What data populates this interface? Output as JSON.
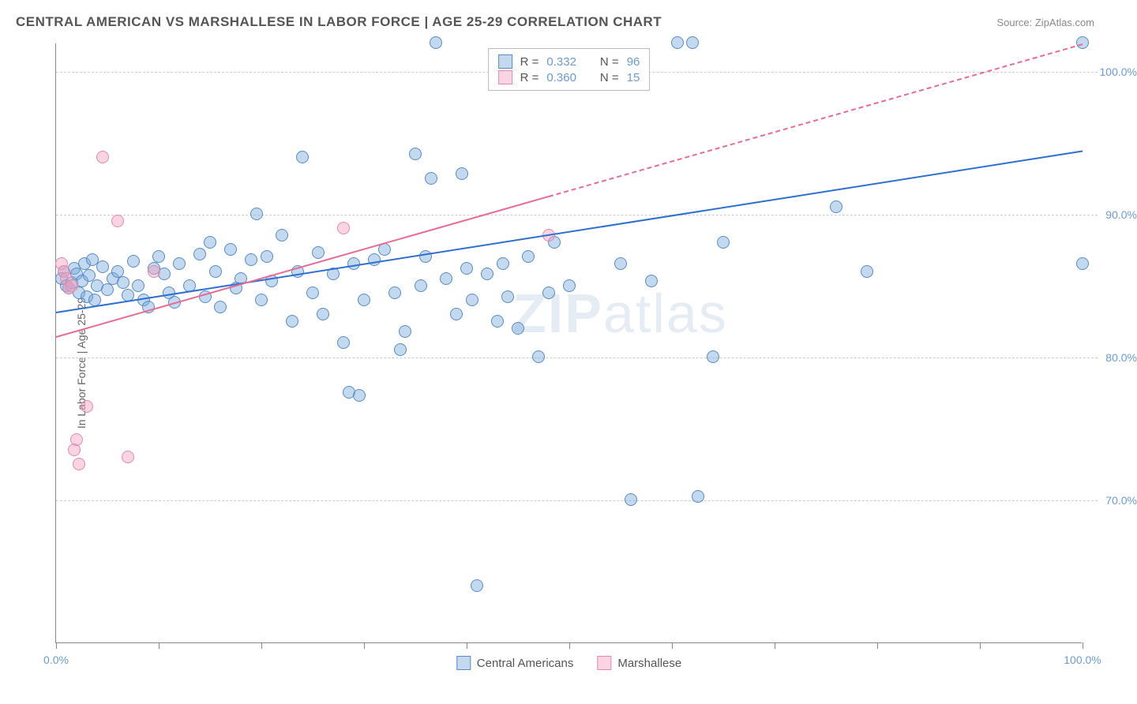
{
  "header": {
    "title": "CENTRAL AMERICAN VS MARSHALLESE IN LABOR FORCE | AGE 25-29 CORRELATION CHART",
    "source": "Source: ZipAtlas.com"
  },
  "chart": {
    "type": "scatter",
    "ylabel": "In Labor Force | Age 25-29",
    "xlim": [
      0,
      100
    ],
    "ylim": [
      60,
      102
    ],
    "xtick_positions": [
      0,
      10,
      20,
      30,
      40,
      50,
      60,
      70,
      80,
      90,
      100
    ],
    "xtick_labels_shown": {
      "0": "0.0%",
      "100": "100.0%"
    },
    "ytick_positions": [
      70,
      80,
      90,
      100
    ],
    "ytick_labels": {
      "70": "70.0%",
      "80": "80.0%",
      "90": "90.0%",
      "100": "100.0%"
    },
    "grid_color": "#cccccc",
    "axis_color": "#888888",
    "label_color": "#6b9bd1",
    "text_color": "#666666",
    "background_color": "#ffffff",
    "watermark": {
      "text_bold": "ZIP",
      "text_light": "atlas",
      "color": "rgba(150,180,210,0.25)"
    },
    "series": [
      {
        "name": "Central Americans",
        "marker_fill": "rgba(120,170,220,0.45)",
        "marker_stroke": "#5a8bc4",
        "trend_color": "#2e6fd0",
        "trend": {
          "x1": 0,
          "y1": 83.2,
          "x2": 100,
          "y2": 94.5,
          "solid_until_x": 100
        },
        "r": "0.332",
        "n": "96",
        "points": [
          [
            0.5,
            85.5
          ],
          [
            0.8,
            86.0
          ],
          [
            1.0,
            85.0
          ],
          [
            1.2,
            84.8
          ],
          [
            1.5,
            85.2
          ],
          [
            1.8,
            86.2
          ],
          [
            2.0,
            85.8
          ],
          [
            2.2,
            84.5
          ],
          [
            2.5,
            85.3
          ],
          [
            2.8,
            86.5
          ],
          [
            3.0,
            84.2
          ],
          [
            3.2,
            85.7
          ],
          [
            3.5,
            86.8
          ],
          [
            3.8,
            84.0
          ],
          [
            4.0,
            85.0
          ],
          [
            4.5,
            86.3
          ],
          [
            5.0,
            84.7
          ],
          [
            5.5,
            85.5
          ],
          [
            6.0,
            86.0
          ],
          [
            6.5,
            85.2
          ],
          [
            7.0,
            84.3
          ],
          [
            7.5,
            86.7
          ],
          [
            8.0,
            85.0
          ],
          [
            8.5,
            84.0
          ],
          [
            9.0,
            83.5
          ],
          [
            9.5,
            86.2
          ],
          [
            10,
            87.0
          ],
          [
            10.5,
            85.8
          ],
          [
            11,
            84.5
          ],
          [
            11.5,
            83.8
          ],
          [
            12,
            86.5
          ],
          [
            13,
            85.0
          ],
          [
            14,
            87.2
          ],
          [
            14.5,
            84.2
          ],
          [
            15,
            88.0
          ],
          [
            15.5,
            86.0
          ],
          [
            16,
            83.5
          ],
          [
            17,
            87.5
          ],
          [
            17.5,
            84.8
          ],
          [
            18,
            85.5
          ],
          [
            19,
            86.8
          ],
          [
            19.5,
            90.0
          ],
          [
            20,
            84.0
          ],
          [
            20.5,
            87.0
          ],
          [
            21,
            85.3
          ],
          [
            22,
            88.5
          ],
          [
            23,
            82.5
          ],
          [
            23.5,
            86.0
          ],
          [
            24,
            94.0
          ],
          [
            25,
            84.5
          ],
          [
            25.5,
            87.3
          ],
          [
            26,
            83.0
          ],
          [
            27,
            85.8
          ],
          [
            28,
            81.0
          ],
          [
            28.5,
            77.5
          ],
          [
            29,
            86.5
          ],
          [
            29.5,
            77.3
          ],
          [
            30,
            84.0
          ],
          [
            31,
            86.8
          ],
          [
            32,
            87.5
          ],
          [
            33,
            84.5
          ],
          [
            33.5,
            80.5
          ],
          [
            34,
            81.8
          ],
          [
            35,
            94.2
          ],
          [
            35.5,
            85.0
          ],
          [
            36,
            87.0
          ],
          [
            36.5,
            92.5
          ],
          [
            37,
            102.0
          ],
          [
            38,
            85.5
          ],
          [
            39,
            83.0
          ],
          [
            39.5,
            92.8
          ],
          [
            40,
            86.2
          ],
          [
            40.5,
            84.0
          ],
          [
            41,
            64.0
          ],
          [
            42,
            85.8
          ],
          [
            43,
            82.5
          ],
          [
            43.5,
            86.5
          ],
          [
            44,
            84.2
          ],
          [
            45,
            82.0
          ],
          [
            46,
            87.0
          ],
          [
            47,
            80.0
          ],
          [
            48,
            84.5
          ],
          [
            48.5,
            88.0
          ],
          [
            50,
            85.0
          ],
          [
            55,
            86.5
          ],
          [
            56,
            70.0
          ],
          [
            58,
            85.3
          ],
          [
            60.5,
            102.0
          ],
          [
            62,
            102.0
          ],
          [
            62.5,
            70.2
          ],
          [
            64,
            80.0
          ],
          [
            65,
            88.0
          ],
          [
            76,
            90.5
          ],
          [
            79,
            86.0
          ],
          [
            100,
            102.0
          ],
          [
            100,
            86.5
          ]
        ]
      },
      {
        "name": "Marshallese",
        "marker_fill": "rgba(245,160,190,0.45)",
        "marker_stroke": "#e08bad",
        "trend_color": "#e86b94",
        "trend": {
          "x1": 0,
          "y1": 81.5,
          "x2": 100,
          "y2": 102.0,
          "solid_until_x": 48
        },
        "r": "0.360",
        "n": "15",
        "points": [
          [
            0.5,
            86.5
          ],
          [
            0.8,
            86.0
          ],
          [
            1.0,
            85.5
          ],
          [
            1.2,
            84.8
          ],
          [
            1.5,
            85.0
          ],
          [
            1.8,
            73.5
          ],
          [
            2.0,
            74.2
          ],
          [
            2.2,
            72.5
          ],
          [
            3.0,
            76.5
          ],
          [
            4.5,
            94.0
          ],
          [
            6.0,
            89.5
          ],
          [
            7.0,
            73.0
          ],
          [
            9.5,
            86.0
          ],
          [
            28,
            89.0
          ],
          [
            48,
            88.5
          ]
        ]
      }
    ],
    "legend_top": {
      "rows": [
        {
          "swatch_fill": "rgba(120,170,220,0.45)",
          "swatch_stroke": "#5a8bc4",
          "r_label": "R =",
          "r_val": "0.332",
          "n_label": "N =",
          "n_val": "96"
        },
        {
          "swatch_fill": "rgba(245,160,190,0.45)",
          "swatch_stroke": "#e08bad",
          "r_label": "R =",
          "r_val": "0.360",
          "n_label": "N =",
          "n_val": "15"
        }
      ]
    },
    "legend_bottom": {
      "items": [
        {
          "swatch_fill": "rgba(120,170,220,0.45)",
          "swatch_stroke": "#5a8bc4",
          "label": "Central Americans"
        },
        {
          "swatch_fill": "rgba(245,160,190,0.45)",
          "swatch_stroke": "#e08bad",
          "label": "Marshallese"
        }
      ]
    }
  }
}
